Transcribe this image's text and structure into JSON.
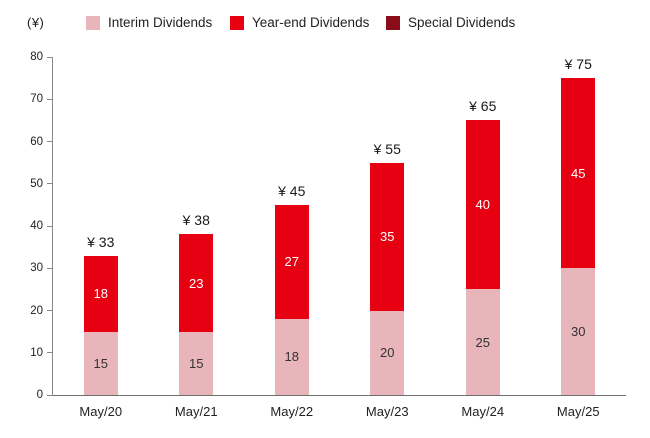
{
  "unit_label": "(¥)",
  "legend": [
    {
      "label": "Interim Dividends",
      "color": "#e7b5ba"
    },
    {
      "label": "Year-end Dividends",
      "color": "#e60012"
    },
    {
      "label": "Special Dividends",
      "color": "#8a0b1a"
    }
  ],
  "chart_data": {
    "type": "bar",
    "stacked": true,
    "title": "",
    "xlabel": "",
    "ylabel": "(¥)",
    "categories": [
      "May/20",
      "May/21",
      "May/22",
      "May/23",
      "May/24",
      "May/25"
    ],
    "series": [
      {
        "name": "Interim Dividends",
        "key": "interim",
        "color": "#e7b5ba",
        "label_color": "#333333",
        "values": [
          15,
          15,
          18,
          20,
          25,
          30
        ]
      },
      {
        "name": "Year-end Dividends",
        "key": "yearend",
        "color": "#e60012",
        "label_color": "#ffffff",
        "values": [
          18,
          23,
          27,
          35,
          40,
          45
        ]
      },
      {
        "name": "Special Dividends",
        "key": "special",
        "color": "#8a0b1a",
        "label_color": "#ffffff",
        "values": [
          0,
          0,
          0,
          0,
          0,
          0
        ]
      }
    ],
    "totals": [
      "¥ 33",
      "¥ 38",
      "¥ 45",
      "¥ 55",
      "¥ 65",
      "¥ 75"
    ],
    "ylim": [
      0,
      80
    ],
    "yticks": [
      0,
      10,
      20,
      30,
      40,
      50,
      60,
      70,
      80
    ],
    "grid": false,
    "legend_position": "top"
  }
}
